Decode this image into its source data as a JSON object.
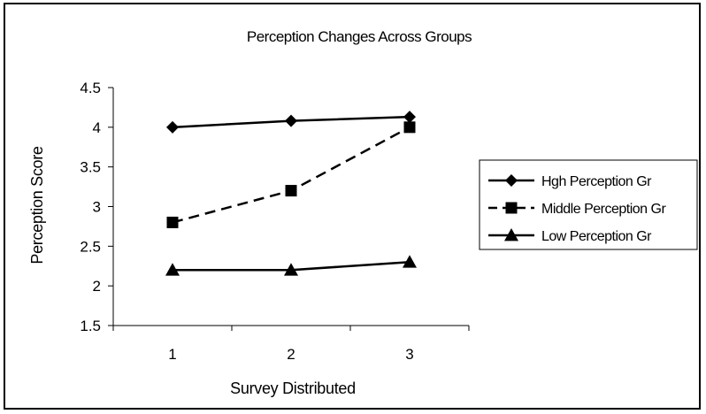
{
  "chart_data": {
    "type": "line",
    "title": "Perception Changes Across Groups",
    "xlabel": "Survey Distributed",
    "ylabel": "Perception Score",
    "x": [
      1,
      2,
      3
    ],
    "ylim": [
      1.5,
      4.5
    ],
    "ytick_step": 0.5,
    "grid": false,
    "legend_position": "right",
    "series": [
      {
        "name": "Hgh Perception Gr",
        "values": [
          4.0,
          4.08,
          4.13
        ],
        "marker": "diamond",
        "line": "solid"
      },
      {
        "name": "Middle Perception Gr",
        "values": [
          2.8,
          3.2,
          4.0
        ],
        "marker": "square",
        "line": "dashed"
      },
      {
        "name": "Low Perception Gr",
        "values": [
          2.2,
          2.2,
          2.3
        ],
        "marker": "triangle",
        "line": "solid"
      }
    ]
  }
}
